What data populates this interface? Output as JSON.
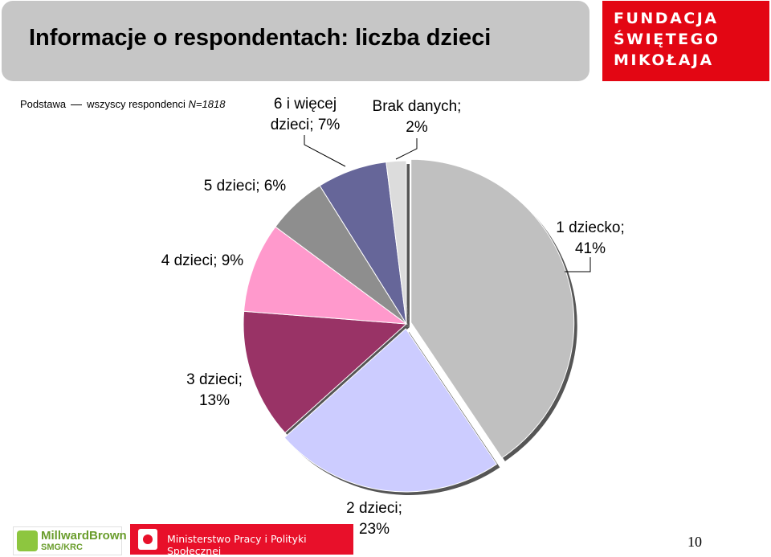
{
  "header": {
    "title": "Informacje o respondentach: liczba dzieci",
    "logo_lines": [
      "FUNDACJA",
      "ŚWIĘTEGO",
      "MIKOŁAJA"
    ]
  },
  "basis": {
    "prefix": "Podstawa",
    "text": "wszyscy respondenci",
    "n": "N=1818"
  },
  "chart_data": {
    "type": "pie",
    "slices": [
      {
        "label": "1 dziecko",
        "value": 41,
        "color": "#c0c0c0",
        "label_text": [
          "1 dziecko;",
          "41%"
        ]
      },
      {
        "label": "2 dzieci",
        "value": 23,
        "color": "#ccccff",
        "label_text": [
          "2 dzieci;",
          "23%"
        ]
      },
      {
        "label": "3 dzieci",
        "value": 13,
        "color": "#993366",
        "label_text": [
          "3 dzieci;",
          "13%"
        ]
      },
      {
        "label": "4 dzieci",
        "value": 9,
        "color": "#ff99cc",
        "label_text": [
          "4 dzieci; 9%"
        ]
      },
      {
        "label": "5 dzieci",
        "value": 6,
        "color": "#8e8e8e",
        "label_text": [
          "5 dzieci; 6%"
        ]
      },
      {
        "label": "6 i więcej dzieci",
        "value": 7,
        "color": "#666699",
        "label_text": [
          "6 i więcej",
          "dzieci; 7%"
        ]
      },
      {
        "label": "Brak danych",
        "value": 2,
        "color": "#dcdcdc",
        "label_text": [
          "Brak danych;",
          "2%"
        ]
      }
    ]
  },
  "footer": {
    "left_logo_name": "MillwardBrown",
    "left_logo_sub": "SMG/KRC",
    "ministry": "Ministerstwo Pracy i Polityki Społecznej",
    "page_number": "10"
  }
}
